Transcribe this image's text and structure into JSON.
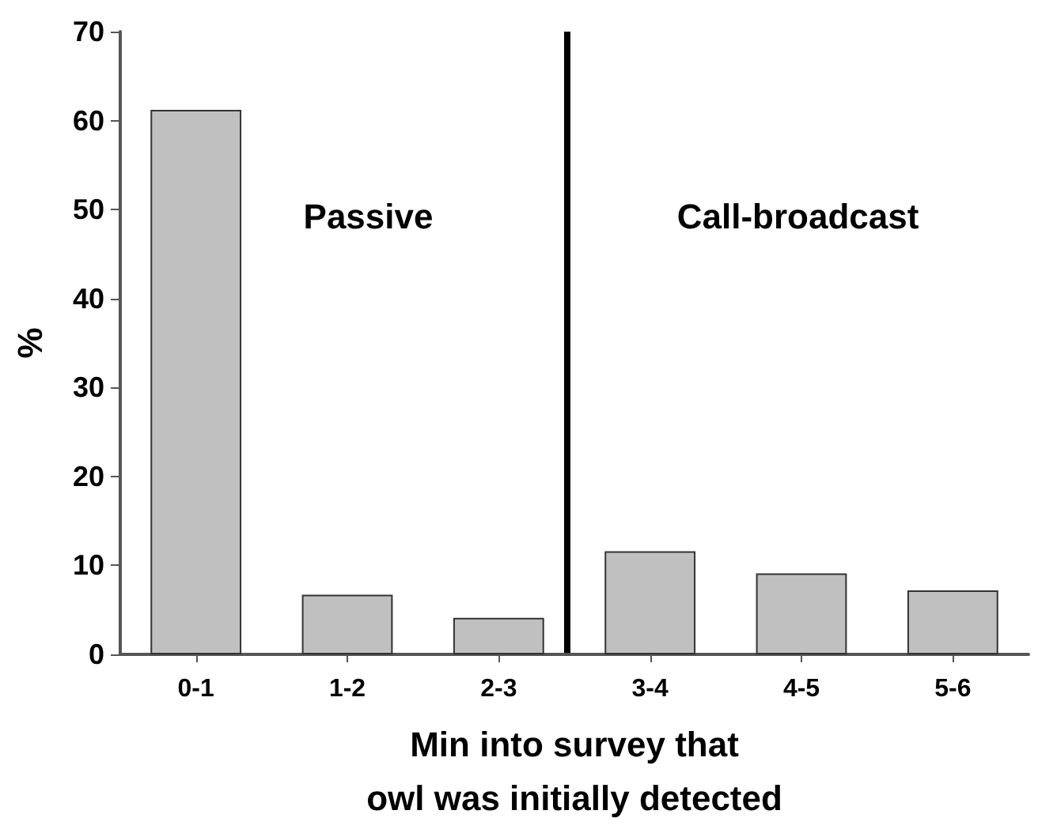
{
  "chart_data": {
    "type": "bar",
    "ylabel": "%",
    "xlabel": "Min into survey that\nowl was initially detected",
    "categories": [
      "0-1",
      "1-2",
      "2-3",
      "3-4",
      "4-5",
      "5-6"
    ],
    "values": [
      61.2,
      6.7,
      4.1,
      11.6,
      9.1,
      7.2
    ],
    "color": "#c0c0c0",
    "ylim": [
      0,
      70
    ],
    "yticks": [
      0,
      10,
      20,
      30,
      40,
      50,
      60,
      70
    ],
    "ref_lines": [
      {
        "axis": "x",
        "value": "2-3",
        "color": "#000000"
      }
    ],
    "annotations": [
      "Passive",
      "Call-broadcast"
    ],
    "grid": false
  }
}
